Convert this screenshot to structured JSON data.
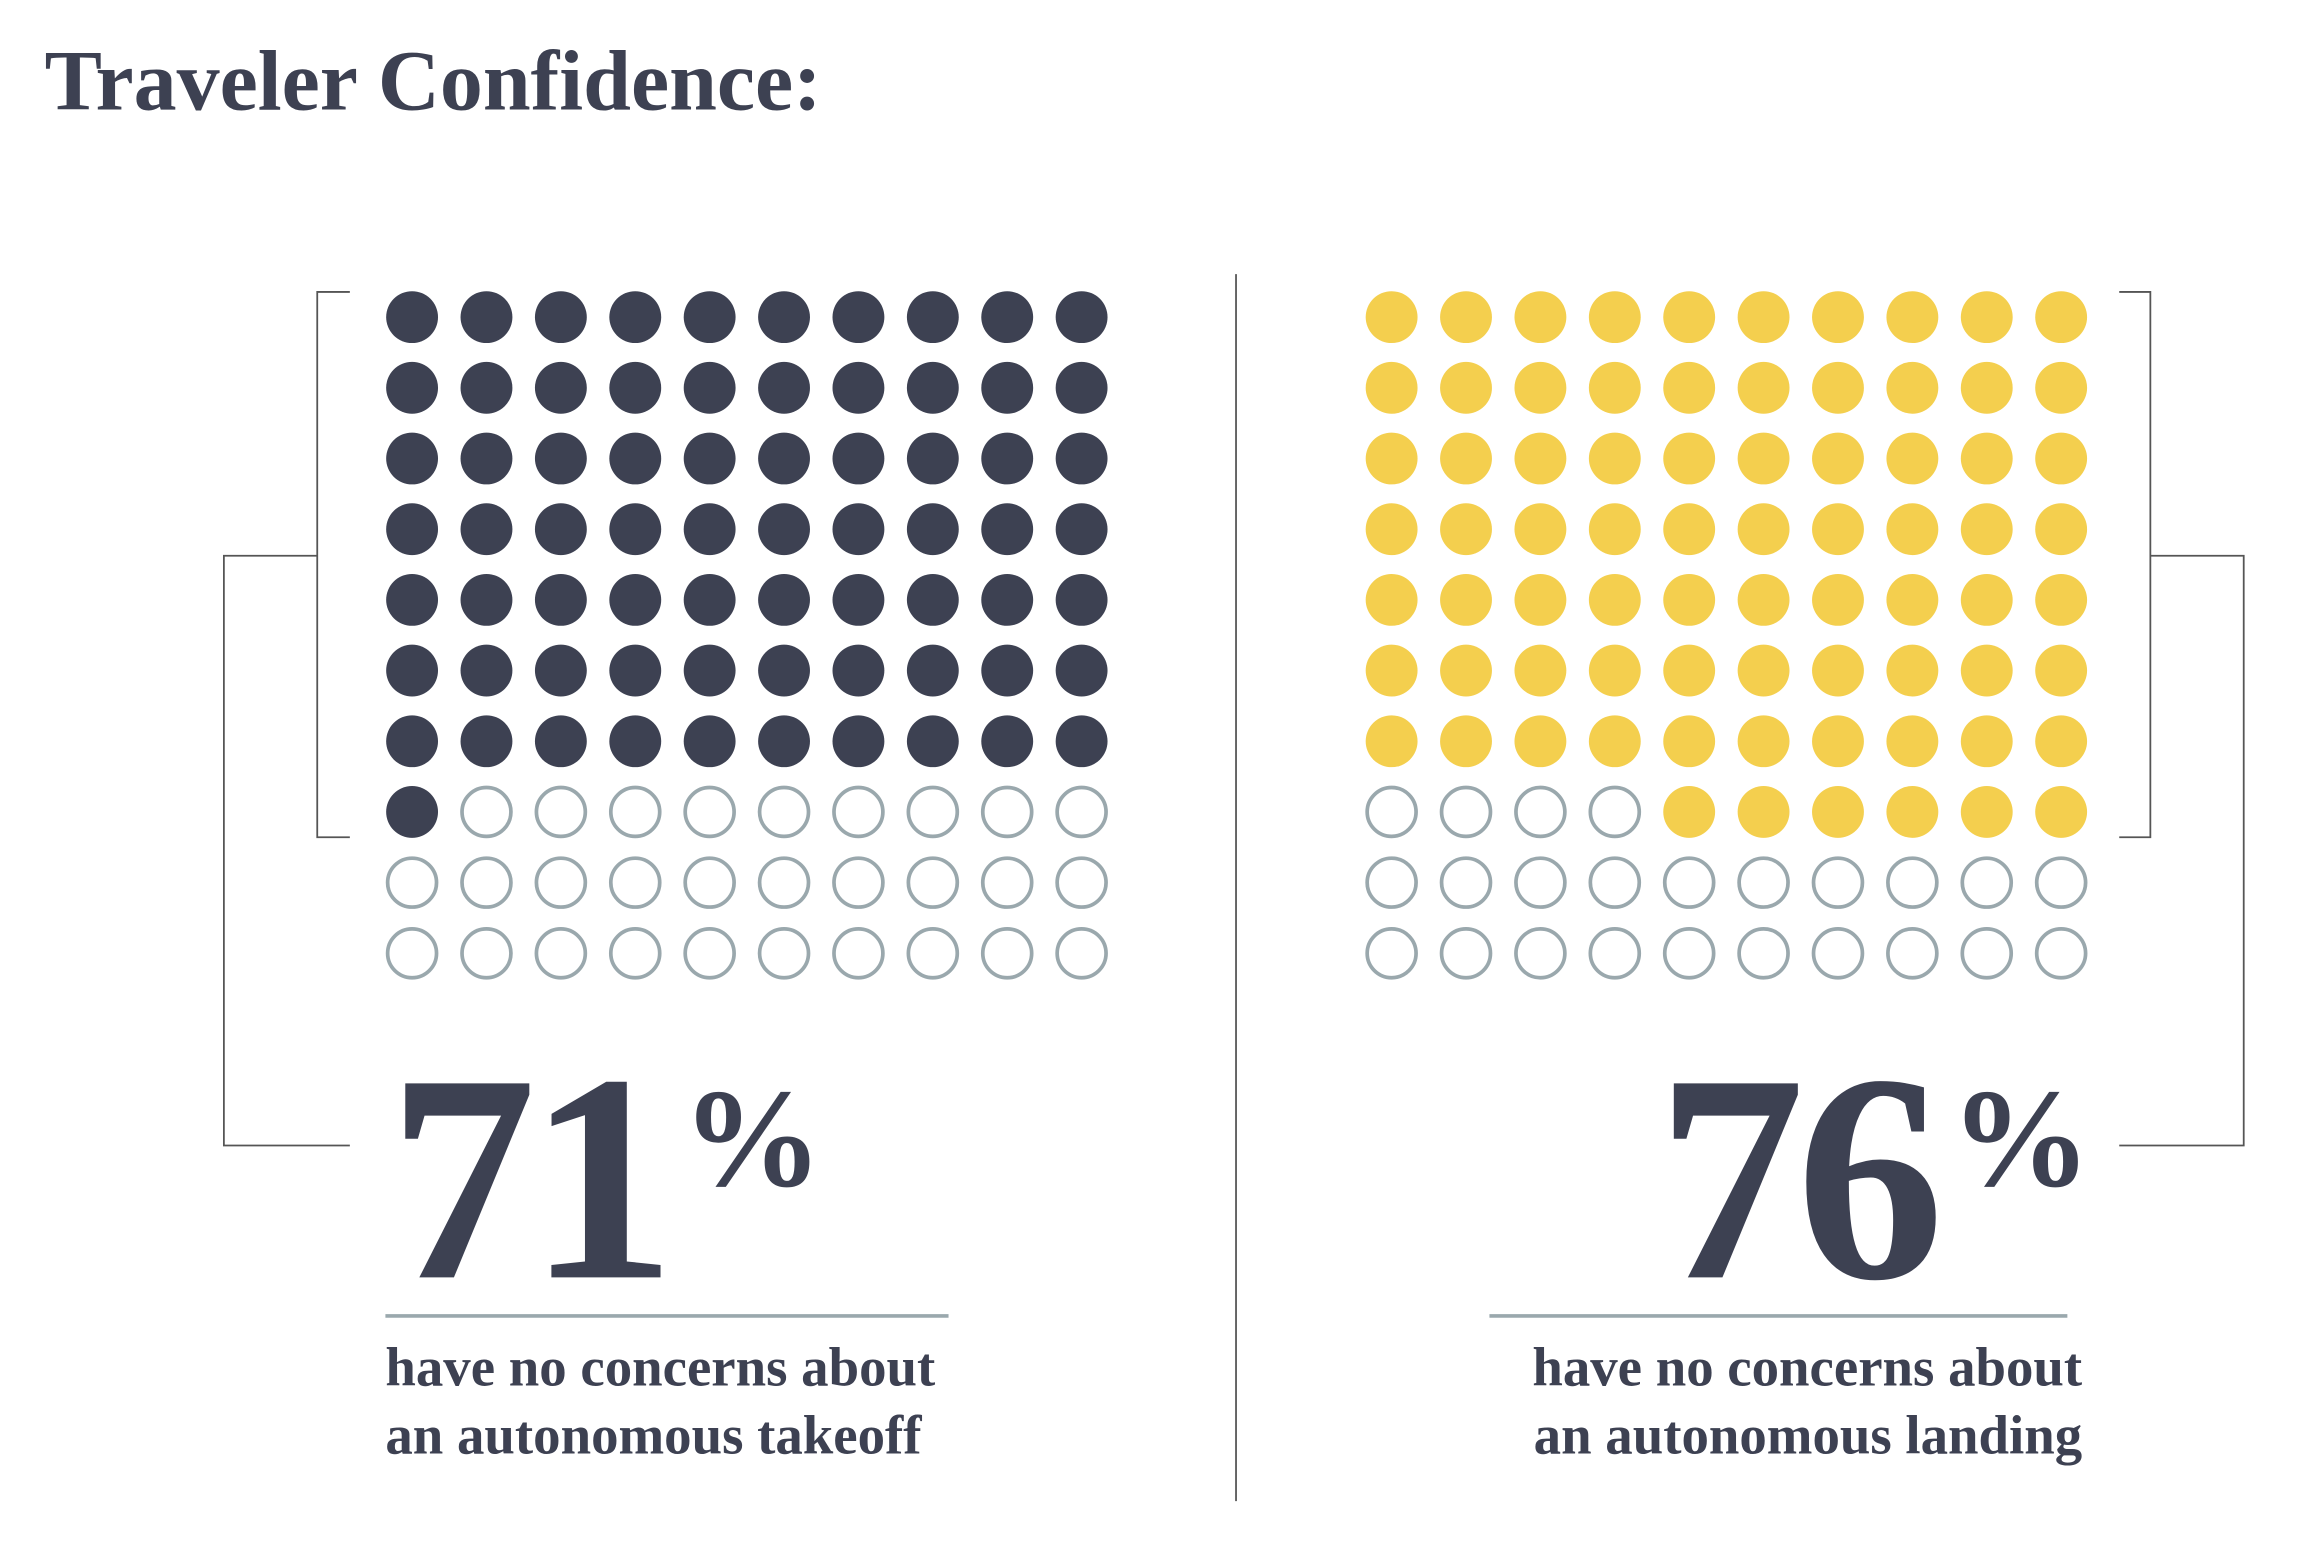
{
  "title": "Traveler Confidence:",
  "chart_data": [
    {
      "type": "waffle",
      "values": [
        71
      ],
      "value_labels": [
        "71%"
      ],
      "total": 100,
      "rows": 10,
      "columns": 10,
      "color": "#3d4152",
      "empty_color": "#9aa8ad",
      "fill_from": "left",
      "align": "left",
      "caption": [
        "have no concerns about",
        "an autonomous takeoff"
      ]
    },
    {
      "type": "waffle",
      "values": [
        76
      ],
      "value_labels": [
        "76%"
      ],
      "total": 100,
      "rows": 10,
      "columns": 10,
      "color": "#f4cf4e",
      "empty_color": "#9aa8ad",
      "fill_from": "right",
      "align": "right",
      "caption": [
        "have no concerns about",
        "an autonomous landing"
      ]
    }
  ]
}
